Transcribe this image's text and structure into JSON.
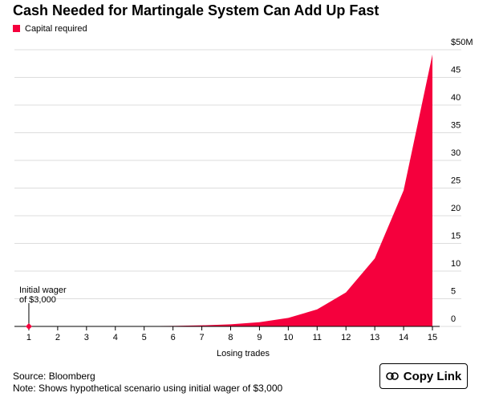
{
  "chart_data": {
    "type": "area",
    "title": "Cash Needed for Martingale System Can Add Up Fast",
    "series": [
      {
        "name": "Capital required",
        "color": "#f5003d",
        "values": [
          0.003,
          0.006,
          0.012,
          0.024,
          0.048,
          0.096,
          0.192,
          0.384,
          0.768,
          1.536,
          3.072,
          6.144,
          12.288,
          24.576,
          49.152
        ]
      }
    ],
    "x": [
      1,
      2,
      3,
      4,
      5,
      6,
      7,
      8,
      9,
      10,
      11,
      12,
      13,
      14,
      15
    ],
    "xlim": [
      0.5,
      15.25
    ],
    "xticks": [
      1,
      2,
      3,
      4,
      5,
      6,
      7,
      8,
      9,
      10,
      11,
      12,
      13,
      14,
      15
    ],
    "xlabel": "Losing trades",
    "ylim": [
      0,
      50
    ],
    "yticks": [
      0,
      5,
      10,
      15,
      20,
      25,
      30,
      35,
      40,
      45,
      {
        "value": 50,
        "label": "$50M"
      }
    ],
    "grid": true,
    "annotation": {
      "lines": [
        "Initial wager",
        "of $3,000"
      ],
      "x": 1
    },
    "source": "Source: Bloomberg",
    "note": "Note: Shows hypothetical scenario using initial wager of $3,000"
  },
  "button": {
    "label": "Copy Link"
  }
}
